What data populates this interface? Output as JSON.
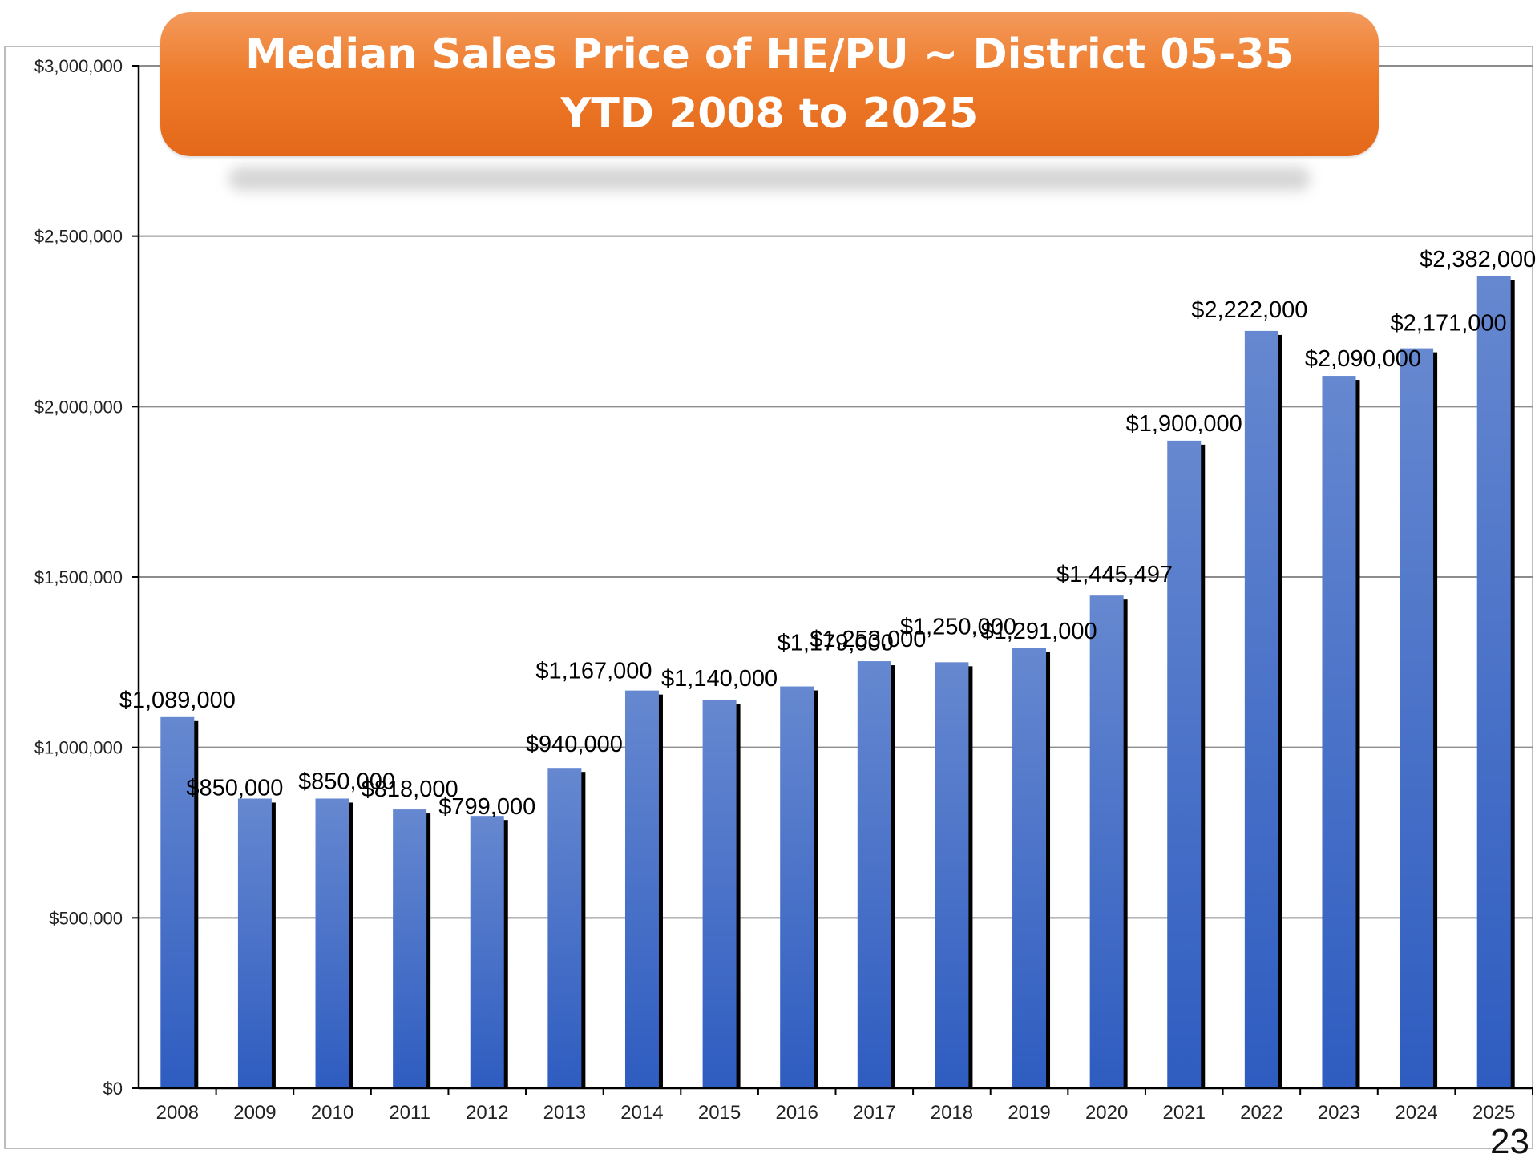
{
  "chart_data": {
    "type": "bar",
    "title": "Median Sales Price of HE/PU ~ District 05-35",
    "subtitle": "YTD 2008 to 2025",
    "xlabel": "",
    "ylabel": "",
    "categories": [
      "2008",
      "2009",
      "2010",
      "2011",
      "2012",
      "2013",
      "2014",
      "2015",
      "2016",
      "2017",
      "2018",
      "2019",
      "2020",
      "2021",
      "2022",
      "2023",
      "2024",
      "2025"
    ],
    "values": [
      1089000,
      850000,
      850000,
      818000,
      799000,
      940000,
      1167000,
      1140000,
      1179000,
      1253000,
      1250000,
      1291000,
      1445497,
      1900000,
      2222000,
      2090000,
      2171000,
      2382000
    ],
    "data_labels": [
      "$1,089,000",
      "$850,000",
      "$850,000",
      "$818,000",
      "$799,000",
      "$940,000",
      "$1,167,000",
      "$1,140,000",
      "$1,179,000",
      "$1,253,000",
      "$1,250,000",
      "$1,291,000",
      "$1,445,497",
      "$1,900,000",
      "$2,222,000",
      "$2,090,000",
      "$2,171,000",
      "$2,382,000"
    ],
    "y_ticks": [
      {
        "value": 0,
        "label": "$0"
      },
      {
        "value": 500000,
        "label": "$500,000"
      },
      {
        "value": 1000000,
        "label": "$1,000,000"
      },
      {
        "value": 1500000,
        "label": "$1,500,000"
      },
      {
        "value": 2000000,
        "label": "$2,000,000"
      },
      {
        "value": 2500000,
        "label": "$2,500,000"
      },
      {
        "value": 3000000,
        "label": "$3,000,000"
      }
    ],
    "ylim": [
      0,
      3000000
    ],
    "grid": true,
    "legend": "none",
    "bar_color_top": "#6688d0",
    "bar_color_bottom": "#2e5cc0",
    "bar_shadow_color": "#000000",
    "title_banner_color": "#ee7b2a"
  },
  "page_number": "23"
}
